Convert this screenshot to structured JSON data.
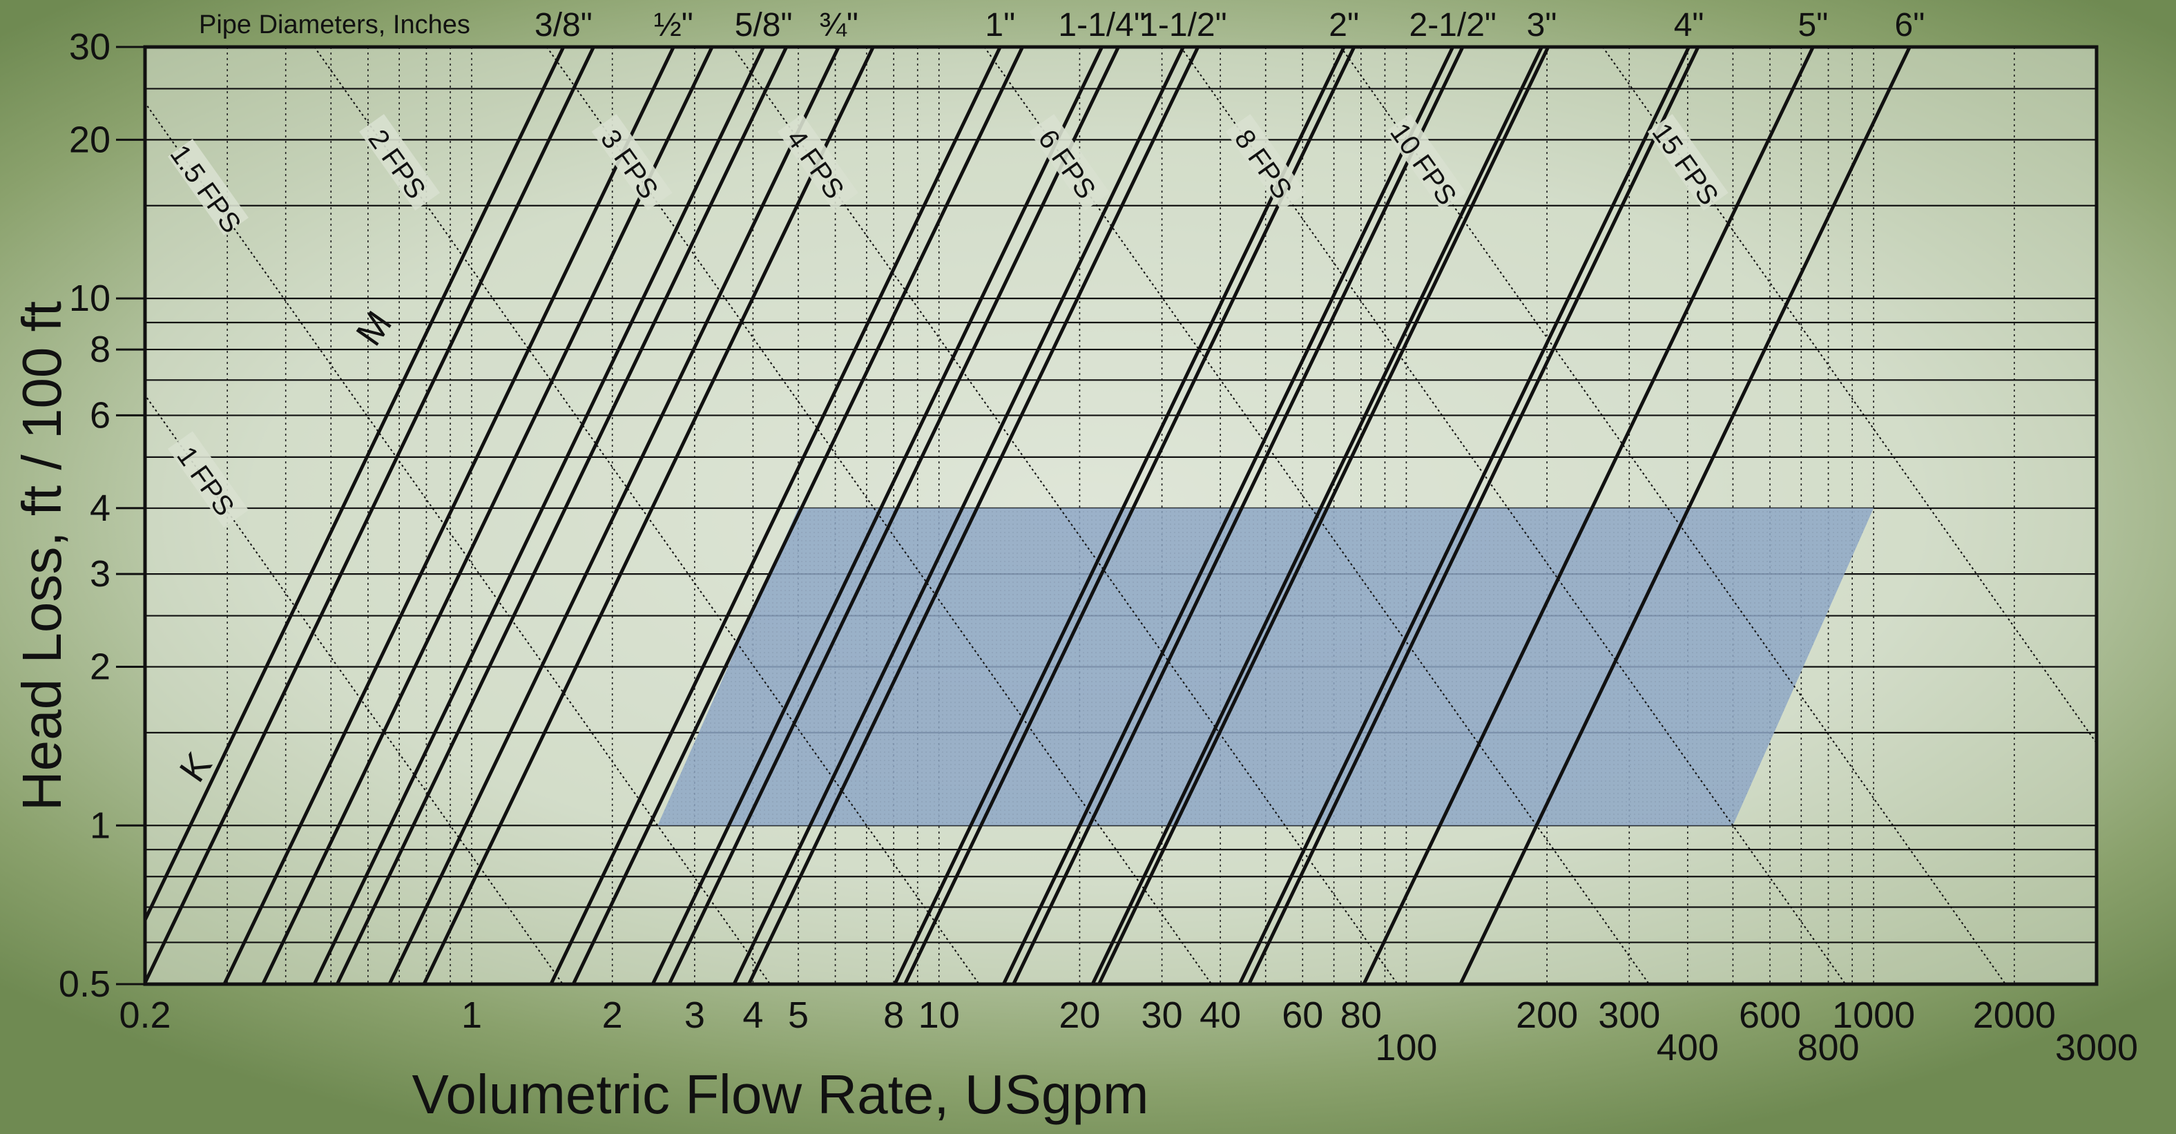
{
  "chart_data": {
    "type": "line",
    "title": "Pipe Diameters, Inches",
    "xlabel": "Volumetric Flow Rate, USgpm",
    "ylabel": "Head Loss, ft / 100 ft",
    "x_scale": "log",
    "y_scale": "log",
    "xlim": [
      0.2,
      3000
    ],
    "ylim": [
      0.5,
      30
    ],
    "grid": true,
    "x_tick_labels": [
      {
        "value": 0.2,
        "label": "0.2"
      },
      {
        "value": 1,
        "label": "1"
      },
      {
        "value": 2,
        "label": "2"
      },
      {
        "value": 3,
        "label": "3"
      },
      {
        "value": 4,
        "label": "4"
      },
      {
        "value": 5,
        "label": "5"
      },
      {
        "value": 8,
        "label": "8"
      },
      {
        "value": 10,
        "label": "10"
      },
      {
        "value": 20,
        "label": "20"
      },
      {
        "value": 30,
        "label": "30"
      },
      {
        "value": 40,
        "label": "40"
      },
      {
        "value": 60,
        "label": "60"
      },
      {
        "value": 80,
        "label": "80"
      },
      {
        "value": 100,
        "label": "100",
        "row": 2
      },
      {
        "value": 200,
        "label": "200"
      },
      {
        "value": 300,
        "label": "300"
      },
      {
        "value": 400,
        "label": "400",
        "row": 2
      },
      {
        "value": 600,
        "label": "600"
      },
      {
        "value": 800,
        "label": "800",
        "row": 2
      },
      {
        "value": 1000,
        "label": "1000"
      },
      {
        "value": 2000,
        "label": "2000"
      },
      {
        "value": 3000,
        "label": "3000",
        "row": 2
      }
    ],
    "y_tick_labels": [
      {
        "value": 0.5,
        "label": "0.5"
      },
      {
        "value": 1,
        "label": "1"
      },
      {
        "value": 2,
        "label": "2"
      },
      {
        "value": 3,
        "label": "3"
      },
      {
        "value": 4,
        "label": "4"
      },
      {
        "value": 6,
        "label": "6"
      },
      {
        "value": 8,
        "label": "8"
      },
      {
        "value": 10,
        "label": "10"
      },
      {
        "value": 20,
        "label": "20"
      },
      {
        "value": 30,
        "label": "30"
      }
    ],
    "y_gridlines": [
      0.5,
      0.6,
      0.7,
      0.8,
      0.9,
      1,
      1.5,
      2,
      2.5,
      3,
      4,
      5,
      6,
      7,
      8,
      9,
      10,
      15,
      20,
      25,
      30
    ],
    "pipe_lines": [
      {
        "label": "3/8\"",
        "type": "K",
        "q_at_1": 0.25,
        "label_x": 0.5
      },
      {
        "label": "3/8\"",
        "type": "M",
        "q_at_1": 0.29,
        "label_x": 0.5
      },
      {
        "label": "½\"",
        "type": "K",
        "q_at_1": 0.43,
        "label_x": 1.0
      },
      {
        "label": "½\"",
        "type": "M",
        "q_at_1": 0.52,
        "label_x": 1.0
      },
      {
        "label": "5/8\"",
        "type": "K",
        "q_at_1": 0.67,
        "label_x": 1.5
      },
      {
        "label": "5/8\"",
        "type": "M",
        "q_at_1": 0.75,
        "label_x": 1.5
      },
      {
        "label": "¾\"",
        "type": "K",
        "q_at_1": 0.97,
        "label_x": 2.0
      },
      {
        "label": "¾\"",
        "type": "M",
        "q_at_1": 1.15,
        "label_x": 2.0
      },
      {
        "label": "1\"",
        "type": "K",
        "q_at_1": 2.15,
        "label_x": 5.0
      },
      {
        "label": "1\"",
        "type": "M",
        "q_at_1": 2.4,
        "label_x": 5.0
      },
      {
        "label": "1-1/4\"",
        "type": "K",
        "q_at_1": 3.55,
        "label_x": 7.0
      },
      {
        "label": "1-1/4\"",
        "type": "M",
        "q_at_1": 3.85,
        "label_x": 7.0
      },
      {
        "label": "1-1/2\"",
        "type": "K",
        "q_at_1": 5.3,
        "label_x": 12.0
      },
      {
        "label": "1-1/2\"",
        "type": "M",
        "q_at_1": 5.7,
        "label_x": 12.0
      },
      {
        "label": "2\"",
        "type": "K",
        "q_at_1": 11.7,
        "label_x": 20.0
      },
      {
        "label": "2\"",
        "type": "M",
        "q_at_1": 12.3,
        "label_x": 20.0
      },
      {
        "label": "2-1/2\"",
        "type": "K",
        "q_at_1": 20.0,
        "label_x": 40.0
      },
      {
        "label": "2-1/2\"",
        "type": "M",
        "q_at_1": 21.0,
        "label_x": 40.0
      },
      {
        "label": "3\"",
        "type": "K",
        "q_at_1": 31.0,
        "label_x": 60.0
      },
      {
        "label": "3\"",
        "type": "M",
        "q_at_1": 32.0,
        "label_x": 60.0
      },
      {
        "label": "4\"",
        "type": "K",
        "q_at_1": 64.0,
        "label_x": 150.0
      },
      {
        "label": "4\"",
        "type": "M",
        "q_at_1": 67.0,
        "label_x": 150.0
      },
      {
        "label": "5\"",
        "type": "K",
        "q_at_1": 118.0,
        "label_x": 300.0
      },
      {
        "label": "6\"",
        "type": "K",
        "q_at_1": 190.0,
        "label_x": 600.0
      }
    ],
    "velocity_lines": [
      {
        "label": "1 FPS",
        "q_at_1": 0.9
      },
      {
        "label": "1.5 FPS",
        "q_at_1": 2.5
      },
      {
        "label": "2 FPS",
        "q_at_1": 7.0
      },
      {
        "label": "3 FPS",
        "q_at_1": 22.0
      },
      {
        "label": "4 FPS",
        "q_at_1": 55.0
      },
      {
        "label": "6 FPS",
        "q_at_1": 190.0
      },
      {
        "label": "8 FPS",
        "q_at_1": 500.0
      },
      {
        "label": "10 FPS",
        "q_at_1": 1100.0
      },
      {
        "label": "15 FPS",
        "q_at_1": 4000.0
      }
    ],
    "type_labels": [
      {
        "label": "M",
        "x": 0.65,
        "y": 8.5
      },
      {
        "label": "K",
        "x": 0.27,
        "y": 1.25
      }
    ],
    "shaded_region": {
      "head_loss_range": [
        1,
        4
      ],
      "bounding_velocity_lines": [
        "1.5 FPS",
        "8 FPS"
      ],
      "color": "#8fa8c6"
    },
    "colors": {
      "line": "#111111",
      "grid": "#111111",
      "plot_background": "#dfe6d8"
    }
  }
}
